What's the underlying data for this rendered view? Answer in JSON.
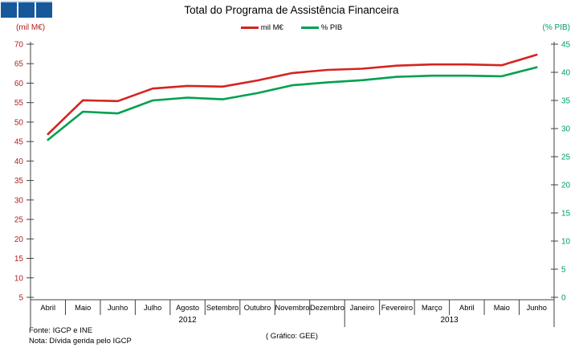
{
  "logo": {
    "squares": 3,
    "color": "#15599b"
  },
  "title": "Total do Programa de Assistência Financeira",
  "legend": [
    {
      "label": "mil M€",
      "color": "#d42420"
    },
    {
      "label": "% PIB",
      "color": "#00a050"
    }
  ],
  "left_axis_unit": "(mil M€)",
  "right_axis_unit": "(% PIB)",
  "footer": {
    "source": "Fonte: IGCP e INE",
    "note": "Nota: Dívida gerida pelo IGCP",
    "credit": "( Gráfico: GEE)"
  },
  "chart_data": {
    "type": "line",
    "title": "Total do Programa de Assistência Financeira",
    "categories": [
      "Abril",
      "Maio",
      "Junho",
      "Julho",
      "Agosto",
      "Setembro",
      "Outubro",
      "Novembro",
      "Dezembro",
      "Janeiro",
      "Fevereiro",
      "Março",
      "Abril",
      "Maio",
      "Junho"
    ],
    "year_groups": [
      {
        "label": "2012",
        "months": 9
      },
      {
        "label": "2013",
        "months": 6
      }
    ],
    "series": [
      {
        "name": "mil M€",
        "axis": "left",
        "color": "#d42420",
        "values": [
          46.9,
          55.6,
          55.4,
          58.6,
          59.3,
          59.1,
          60.7,
          62.6,
          63.4,
          63.7,
          64.5,
          64.8,
          64.8,
          64.6,
          67.3
        ]
      },
      {
        "name": "% PIB",
        "axis": "right",
        "color": "#00a050",
        "values": [
          28.0,
          33.0,
          32.7,
          35.0,
          35.5,
          35.2,
          36.3,
          37.7,
          38.2,
          38.6,
          39.2,
          39.4,
          39.4,
          39.3,
          40.9
        ]
      }
    ],
    "left_axis": {
      "min": 5,
      "max": 70,
      "step": 5,
      "color": "#b22222"
    },
    "right_axis": {
      "min": 0,
      "max": 45,
      "step": 5,
      "color": "#009b6b"
    },
    "grid": false,
    "legend_position": "top"
  }
}
